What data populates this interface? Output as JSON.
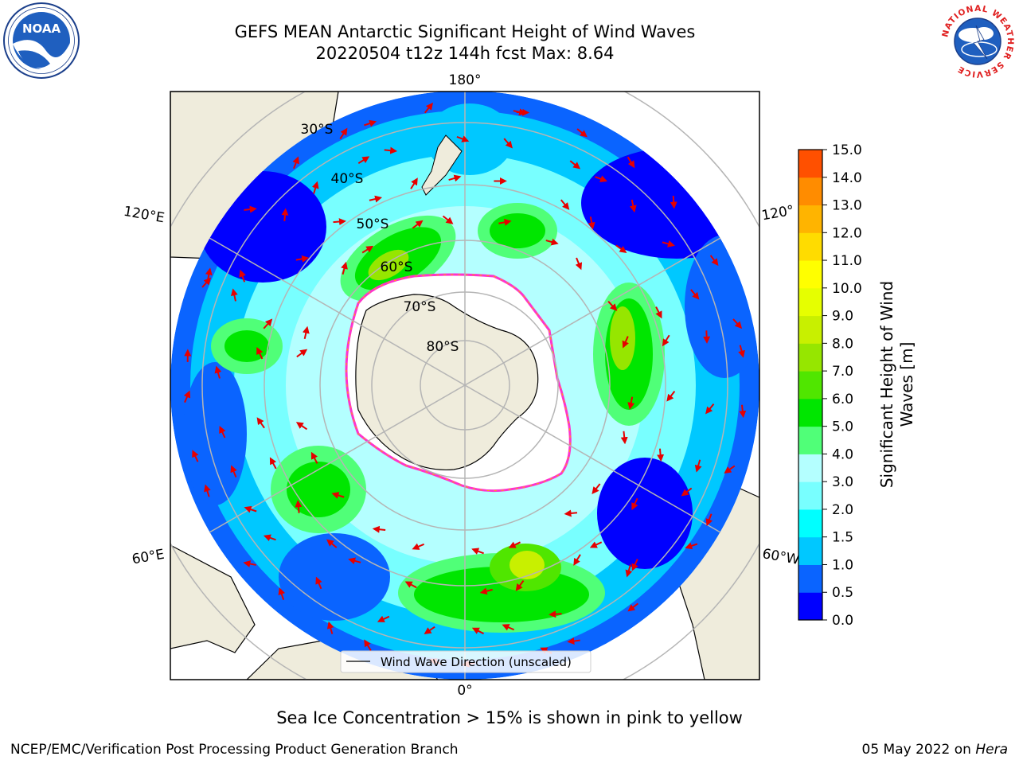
{
  "header": {
    "title_line1": "GEFS MEAN Antarctic Significant Height of Wind Waves",
    "title_line2": "20220504 t12z 144h fcst   Max: 8.64"
  },
  "logos": {
    "left": {
      "name": "noaa-logo",
      "text": "NOAA",
      "ring_text": "NATIONAL OCEANIC AND ATMOSPHERIC ADMINISTRATION · U.S. DEPARTMENT OF COMMERCE"
    },
    "right": {
      "name": "nws-logo",
      "ring_text": "NATIONAL WEATHER SERVICE"
    }
  },
  "map": {
    "projection": "south-polar-stereographic",
    "longitude_labels": [
      "180°",
      "120°E",
      "120°",
      "60°E",
      "60°W",
      "0°"
    ],
    "latitude_labels": [
      "30°S",
      "40°S",
      "50°S",
      "60°S",
      "70°S",
      "80°S"
    ],
    "legend_label": "Wind Wave Direction (unscaled)",
    "land_color": "#efecdc",
    "ice_color": "#ffffff",
    "ice_edge_colors": [
      "#ff33cc",
      "#ffaa00"
    ],
    "arrow_color": "#e60000"
  },
  "colorbar": {
    "label": "Significant Height of Wind Waves [m]",
    "ticks": [
      "0.0",
      "0.5",
      "1.0",
      "1.5",
      "2.0",
      "3.0",
      "4.0",
      "5.0",
      "6.0",
      "7.0",
      "8.0",
      "9.0",
      "10.0",
      "11.0",
      "12.0",
      "13.0",
      "14.0",
      "15.0"
    ],
    "colors": [
      "#0000ff",
      "#0a64ff",
      "#00c8ff",
      "#00ffff",
      "#78ffff",
      "#b4ffff",
      "#50ff78",
      "#00e600",
      "#50e600",
      "#96e600",
      "#c8f000",
      "#e6ff00",
      "#ffff00",
      "#ffdc00",
      "#ffb400",
      "#ff8c00",
      "#ff5000",
      "#ff0000"
    ]
  },
  "footer": {
    "ice_note": "Sea Ice Concentration > 15% is shown in pink to yellow",
    "left": "NCEP/EMC/Verification Post Processing Product Generation Branch",
    "right_date": "05 May 2022 on ",
    "right_machine": "Hera"
  }
}
